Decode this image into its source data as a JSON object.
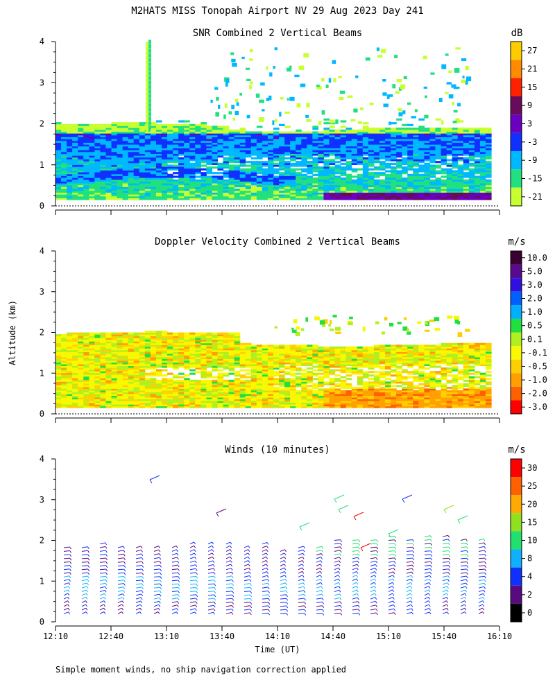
{
  "header": {
    "title": "M2HATS MISS Tonopah Airport NV  29 Aug 2023 Day 241",
    "y_axis_label": "Altitude (km)",
    "x_axis_label": "Time (UT)",
    "footnote": "Simple moment winds, no ship navigation correction applied"
  },
  "panels": {
    "snr": {
      "title": "SNR Combined 2 Vertical Beams",
      "unit": "dB",
      "scale": [
        {
          "label": "27",
          "color": "#ffcc00"
        },
        {
          "label": "21",
          "color": "#ff8c00"
        },
        {
          "label": "15",
          "color": "#ff2000"
        },
        {
          "label": "9",
          "color": "#6a0a5a"
        },
        {
          "label": "3",
          "color": "#6a00c0"
        },
        {
          "label": "-3",
          "color": "#1030ff"
        },
        {
          "label": "-9",
          "color": "#00b8ff"
        },
        {
          "label": "-15",
          "color": "#20e080"
        },
        {
          "label": "-21",
          "color": "#c8ff30"
        }
      ]
    },
    "doppler": {
      "title": "Doppler Velocity Combined 2 Vertical Beams",
      "unit": "m/s",
      "scale": [
        {
          "label": "10.0",
          "color": "#3a0030"
        },
        {
          "label": "5.0",
          "color": "#5a0a90"
        },
        {
          "label": "3.0",
          "color": "#3010e0"
        },
        {
          "label": "2.0",
          "color": "#0060ff"
        },
        {
          "label": "1.0",
          "color": "#00b0ff"
        },
        {
          "label": "0.5",
          "color": "#20e040"
        },
        {
          "label": "0.1",
          "color": "#b0f020"
        },
        {
          "label": "-0.1",
          "color": "#f8f800"
        },
        {
          "label": "-0.5",
          "color": "#ffd000"
        },
        {
          "label": "-1.0",
          "color": "#ffa000"
        },
        {
          "label": "-2.0",
          "color": "#ff6000"
        },
        {
          "label": "-3.0",
          "color": "#ff0000"
        }
      ]
    },
    "winds": {
      "title": "Winds (10 minutes)",
      "unit": "m/s",
      "scale": [
        {
          "label": "30",
          "color": "#ff0000"
        },
        {
          "label": "25",
          "color": "#ff6000"
        },
        {
          "label": "20",
          "color": "#ffaa00"
        },
        {
          "label": "15",
          "color": "#90e020"
        },
        {
          "label": "10",
          "color": "#20e070"
        },
        {
          "label": "8",
          "color": "#10b0ff"
        },
        {
          "label": "4",
          "color": "#1030ff"
        },
        {
          "label": "2",
          "color": "#5a0a80"
        },
        {
          "label": "0",
          "color": "#000000"
        }
      ]
    }
  },
  "chart_data": [
    {
      "type": "heatmap",
      "title": "SNR Combined 2 Vertical Beams",
      "xlabel": "",
      "ylabel": "Altitude (km)",
      "unit": "dB",
      "x_range": [
        "12:10",
        "16:10"
      ],
      "ylim": [
        0,
        4
      ],
      "yticks": [
        0,
        1,
        2,
        3,
        4
      ],
      "color_levels": [
        27,
        21,
        15,
        9,
        3,
        -3,
        -9,
        -15,
        -21
      ],
      "features": {
        "echo_top_km": 2.0,
        "strong_layer_km": [
          1.2,
          1.6
        ],
        "strong_layer_level": -3,
        "lower_layer_km": [
          0.5,
          1.0
        ],
        "near_surface_max_level": 9
      }
    },
    {
      "type": "heatmap",
      "title": "Doppler Velocity Combined 2 Vertical Beams",
      "xlabel": "",
      "ylabel": "Altitude (km)",
      "unit": "m/s",
      "x_range": [
        "12:10",
        "16:10"
      ],
      "ylim": [
        0,
        4
      ],
      "yticks": [
        0,
        1,
        2,
        3,
        4
      ],
      "color_levels": [
        10.0,
        5.0,
        3.0,
        2.0,
        1.0,
        0.5,
        0.1,
        -0.1,
        -0.5,
        -1.0,
        -2.0,
        -3.0
      ],
      "features": {
        "echo_top_km": 2.0,
        "dominant_range": [
          -1.0,
          0.1
        ],
        "afternoon_low_level_range": [
          -2.0,
          -1.0
        ]
      }
    },
    {
      "type": "scatter",
      "title": "Winds (10 minutes)",
      "xlabel": "Time (UT)",
      "ylabel": "Altitude (km)",
      "unit": "m/s",
      "x_ticks": [
        "12:10",
        "12:40",
        "13:10",
        "13:40",
        "14:10",
        "14:40",
        "15:10",
        "15:40",
        "16:10"
      ],
      "ylim": [
        0,
        4
      ],
      "yticks": [
        0,
        1,
        2,
        3,
        4
      ],
      "speed_levels": [
        30,
        25,
        20,
        15,
        10,
        8,
        4,
        2,
        0
      ],
      "profile_interval_minutes": 10,
      "profiles": 24,
      "profile_top_km": 2.0
    }
  ]
}
